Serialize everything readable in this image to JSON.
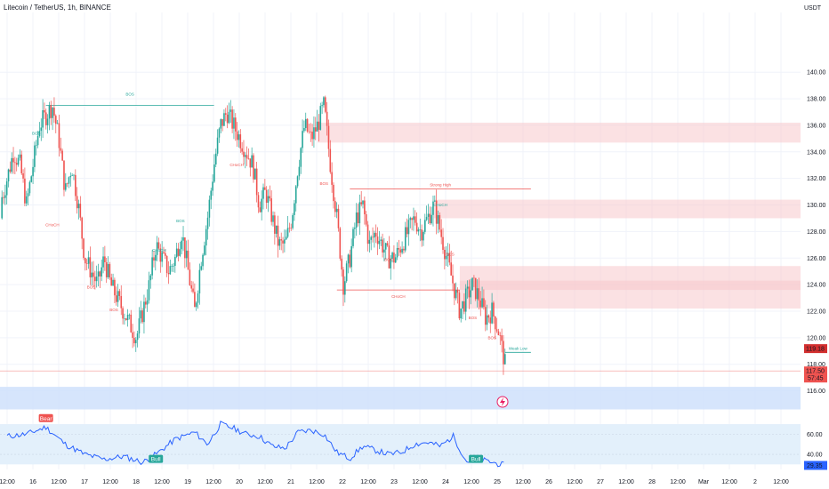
{
  "header": {
    "title": "Litecoin / TetherUS, 1h, BINANCE",
    "unit": "USDT"
  },
  "colors": {
    "up": "#26a69a",
    "down": "#ef5350",
    "zone": "#f8c8cc",
    "accent_blue": "#2962ff",
    "rsi_line": "#2962ff",
    "rsi_band": "#e3f0fb"
  },
  "chart_data": {
    "type": "candlestick",
    "price_axis": {
      "ticks": [
        116,
        118,
        120,
        122,
        124,
        126,
        128,
        130,
        132,
        134,
        136,
        138,
        140
      ],
      "tick_labels": [
        "116.00",
        "118.00",
        "120.00",
        "122.00",
        "124.00",
        "126.00",
        "128.00",
        "130.00",
        "132.00",
        "134.00",
        "136.00",
        "138.00",
        "140.00"
      ],
      "range": [
        114.5,
        144.5
      ]
    },
    "time_axis": {
      "labels": [
        "12:00",
        "16",
        "12:00",
        "17",
        "12:00",
        "18",
        "12:00",
        "19",
        "12:00",
        "20",
        "12:00",
        "21",
        "12:00",
        "22",
        "12:00",
        "23",
        "12:00",
        "24",
        "12:00",
        "25",
        "12:00",
        "26",
        "12:00",
        "27",
        "12:00",
        "28",
        "12:00",
        "Mar",
        "12:00",
        "2",
        "12:00"
      ]
    },
    "price_markers": [
      {
        "label": "119.18",
        "value": 119.18
      },
      {
        "label": "117.50",
        "value": 117.5,
        "countdown": "57:45"
      }
    ],
    "ohlc_path": [
      [
        -2,
        129
      ],
      [
        -0.5,
        131
      ],
      [
        1,
        134
      ],
      [
        2,
        133
      ],
      [
        3,
        130
      ],
      [
        5,
        136
      ],
      [
        7,
        137.5
      ],
      [
        8,
        135
      ],
      [
        9,
        131
      ],
      [
        10,
        133
      ],
      [
        11,
        130
      ],
      [
        12,
        126
      ],
      [
        13,
        125
      ],
      [
        14,
        124
      ],
      [
        15,
        126
      ],
      [
        16,
        124
      ],
      [
        17,
        123
      ],
      [
        18,
        122
      ],
      [
        19,
        121
      ],
      [
        20,
        120
      ],
      [
        21,
        122
      ],
      [
        22,
        124
      ],
      [
        23,
        127
      ],
      [
        24,
        126
      ],
      [
        25,
        125
      ],
      [
        26,
        126
      ],
      [
        27,
        128
      ],
      [
        28,
        125
      ],
      [
        29,
        122
      ],
      [
        30,
        126
      ],
      [
        31,
        129
      ],
      [
        32,
        133
      ],
      [
        33,
        136
      ],
      [
        34,
        137
      ],
      [
        35,
        136
      ],
      [
        36,
        135
      ],
      [
        37,
        134
      ],
      [
        38,
        133
      ],
      [
        39,
        130
      ],
      [
        40,
        131
      ],
      [
        41,
        129
      ],
      [
        42,
        127
      ],
      [
        43,
        127
      ],
      [
        44,
        129
      ],
      [
        45,
        133
      ],
      [
        46,
        136
      ],
      [
        47,
        135
      ],
      [
        48,
        136
      ],
      [
        49,
        137.5
      ],
      [
        50,
        133
      ],
      [
        51,
        129
      ],
      [
        52,
        124
      ],
      [
        53,
        126
      ],
      [
        54,
        129
      ],
      [
        55,
        130
      ],
      [
        56,
        127
      ],
      [
        57,
        128
      ],
      [
        58,
        127
      ],
      [
        59,
        126
      ],
      [
        60,
        126
      ],
      [
        61,
        127
      ],
      [
        62,
        128
      ],
      [
        63,
        129
      ],
      [
        64,
        128
      ],
      [
        65,
        129
      ],
      [
        66,
        130
      ],
      [
        67,
        128
      ],
      [
        68,
        126
      ],
      [
        69,
        124
      ],
      [
        70,
        122
      ],
      [
        71,
        123
      ],
      [
        72,
        124
      ],
      [
        73,
        123
      ],
      [
        74,
        121.5
      ],
      [
        75,
        122
      ],
      [
        76,
        120.5
      ],
      [
        77,
        118
      ]
    ],
    "zones": [
      {
        "top": 136.2,
        "bottom": 134.7,
        "from": 48
      },
      {
        "top": 130.4,
        "bottom": 129.0,
        "from": 66
      },
      {
        "top": 125.4,
        "bottom": 122.2,
        "from": 70
      },
      {
        "top": 124.3,
        "bottom": 123.6,
        "from": 70
      }
    ],
    "structure_lines": [
      {
        "label": "BOS",
        "price": 137.5,
        "from": 6,
        "to": 32,
        "color": "up"
      },
      {
        "label": "CHoCH",
        "price": 123.6,
        "from": 51,
        "to": 70,
        "color": "down"
      },
      {
        "label": "Strong High",
        "price": 131.2,
        "from": 53,
        "to": 81,
        "color": "down"
      },
      {
        "label": "Weak Low",
        "price": 118.9,
        "from": 77,
        "to": 81,
        "color": "up"
      }
    ],
    "small_labels": [
      {
        "text": "BOS",
        "price": 135.3,
        "x": 4.5,
        "color": "up"
      },
      {
        "text": "CHoCH",
        "price": 128.4,
        "x": 7,
        "color": "down"
      },
      {
        "text": "BOS",
        "price": 123.7,
        "x": 13,
        "color": "down"
      },
      {
        "text": "BOS",
        "price": 122.0,
        "x": 16.5,
        "color": "down"
      },
      {
        "text": "CHoCH",
        "price": 126.5,
        "x": 23.5,
        "color": "up"
      },
      {
        "text": "BOS",
        "price": 128.7,
        "x": 26.8,
        "color": "up"
      },
      {
        "text": "CHoCH",
        "price": 132.9,
        "x": 35.5,
        "color": "down"
      },
      {
        "text": "BOS",
        "price": 131.5,
        "x": 49,
        "color": "down"
      },
      {
        "text": "BOS",
        "price": 125.8,
        "x": 59,
        "color": "down"
      },
      {
        "text": "CHoCH",
        "price": 129.9,
        "x": 67,
        "color": "up"
      },
      {
        "text": "BOS",
        "price": 126.2,
        "x": 68.5,
        "color": "down"
      },
      {
        "text": "BOS",
        "price": 121.4,
        "x": 72,
        "color": "down"
      },
      {
        "text": "BOS",
        "price": 119.9,
        "x": 75,
        "color": "down"
      }
    ],
    "blue_band": {
      "top": 116.3,
      "bottom": 114.6
    },
    "rsi": {
      "ticks": [
        40,
        60
      ],
      "tick_labels": [
        "40.00",
        "60.00"
      ],
      "range": [
        25,
        78
      ],
      "current": "29.35",
      "labels": [
        {
          "text": "Bear",
          "x": 6
        },
        {
          "text": "Bull",
          "x": 23
        },
        {
          "text": "Bull",
          "x": 72.5
        }
      ]
    }
  }
}
